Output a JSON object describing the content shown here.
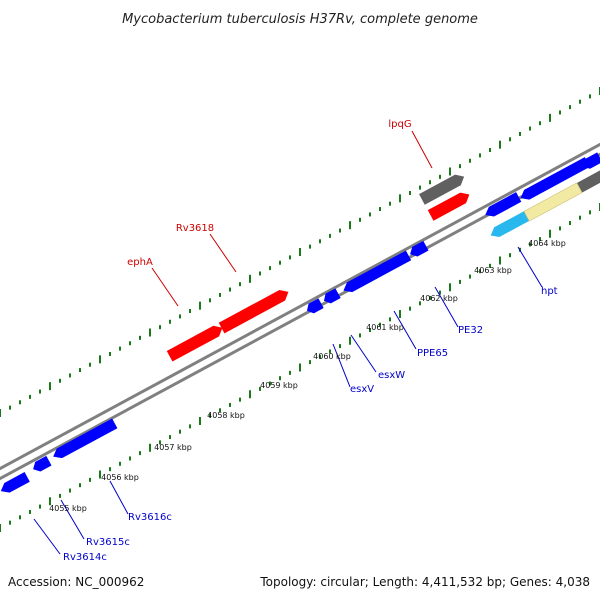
{
  "title": "Mycobacterium tuberculosis H37Rv, complete genome",
  "footer": {
    "accession": "Accession: NC_000962",
    "topology": "Topology: circular; Length: 4,411,532 bp; Genes: 4,038"
  },
  "colors": {
    "forward_gene": "#ff0000",
    "reverse_gene": "#0000ff",
    "forward_label": "#cc0000",
    "reverse_label": "#0000cc",
    "backbone": "#808080",
    "dotted_track": "#1a7a1a",
    "grey_gene": "#606060",
    "cyan_gene": "#29b8ee",
    "tan_gene": "#f2eaa2"
  },
  "scale": {
    "labels": [
      "4055 kbp",
      "4056 kbp",
      "4057 kbp",
      "4058 kbp",
      "4059 kbp",
      "4060 kbp",
      "4061 kbp",
      "4062 kbp",
      "4063 kbp",
      "4064 kbp"
    ]
  },
  "forward_labels": [
    "ephA",
    "Rv3618",
    "lpqG"
  ],
  "reverse_labels": [
    "Rv3614c",
    "Rv3615c",
    "Rv3616c",
    "esxV",
    "esxW",
    "PPE65",
    "PE32",
    "hpt"
  ]
}
